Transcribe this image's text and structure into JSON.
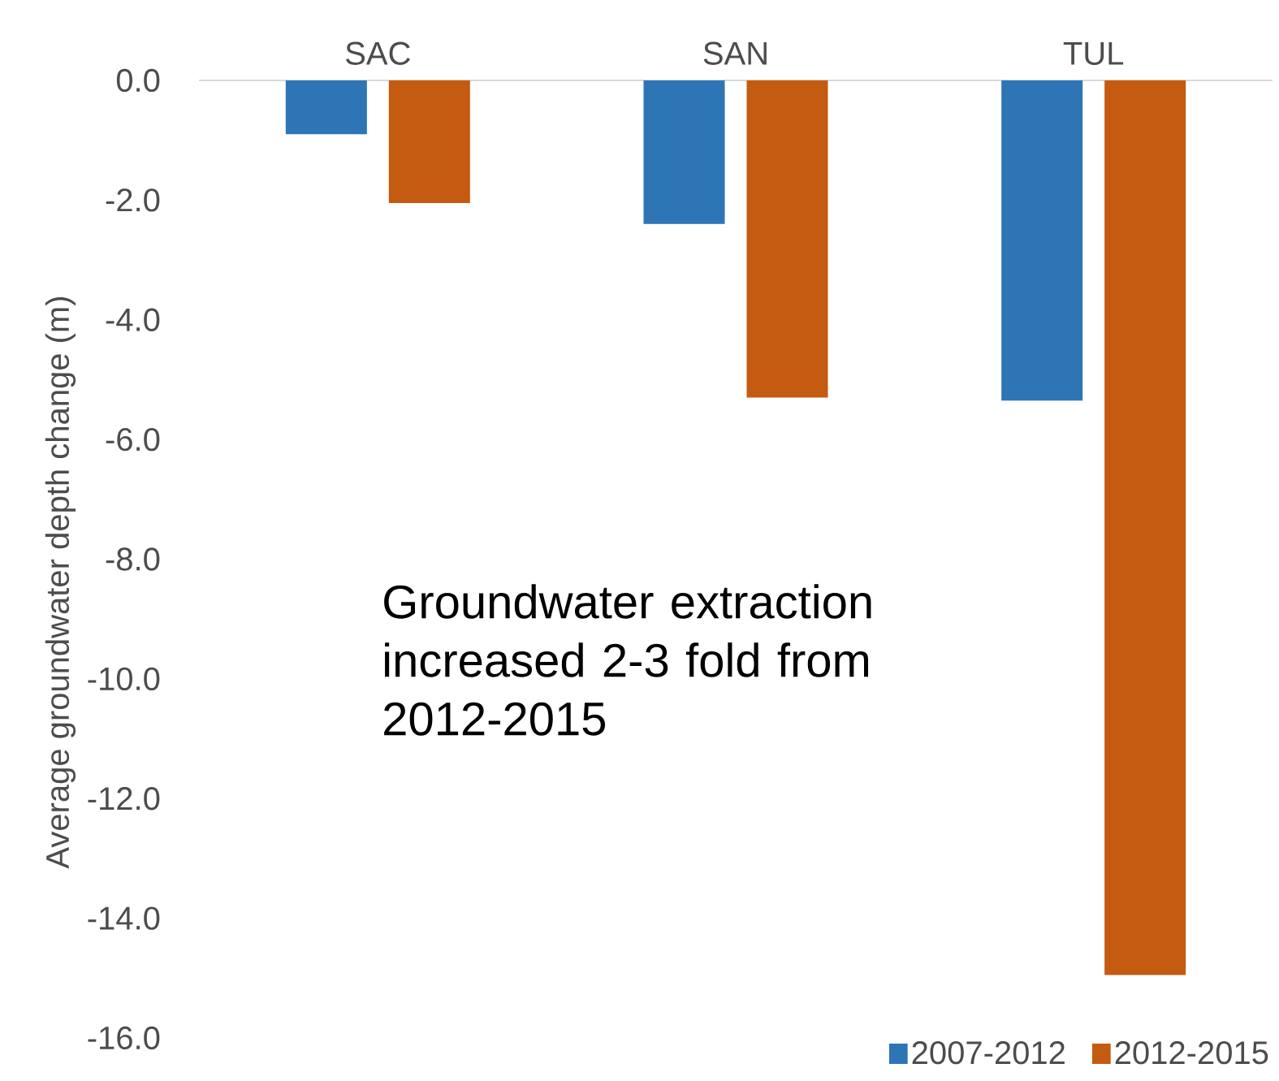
{
  "chart_data": {
    "type": "bar",
    "ylabel": "Average groundwater depth change (m)",
    "categories": [
      "SAC",
      "SAN",
      "TUL"
    ],
    "series": [
      {
        "name": "2007-2012",
        "color": "#2e75b6",
        "values": [
          -0.9,
          -2.4,
          -5.35
        ]
      },
      {
        "name": "2012-2015",
        "color": "#c55a11",
        "values": [
          -2.05,
          -5.3,
          -14.95
        ]
      }
    ],
    "ylim": [
      -16,
      0
    ],
    "yticks": [
      {
        "value": 0,
        "label": "0.0"
      },
      {
        "value": -2,
        "label": "-2.0"
      },
      {
        "value": -4,
        "label": "-4.0"
      },
      {
        "value": -6,
        "label": "-6.0"
      },
      {
        "value": -8,
        "label": "-8.0"
      },
      {
        "value": -10,
        "label": "-10.0"
      },
      {
        "value": -12,
        "label": "-12.0"
      },
      {
        "value": -14,
        "label": "-14.0"
      },
      {
        "value": -16,
        "label": "-16.0"
      }
    ],
    "annotations": [
      "Groundwater extraction increased 2-3 fold from 2012-2015"
    ],
    "legend": "bottom right",
    "grid": false
  }
}
